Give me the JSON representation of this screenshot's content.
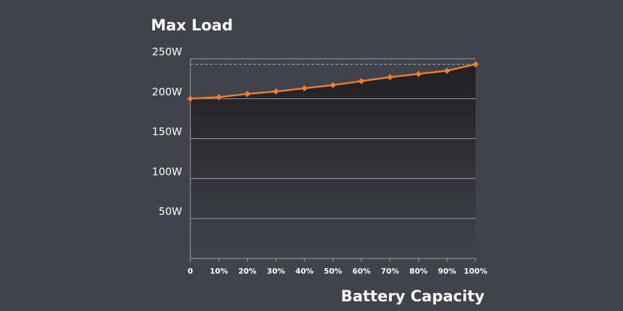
{
  "chart_data": {
    "type": "area",
    "title": "Max Load",
    "xlabel": "Battery Capacity",
    "ylabel": "",
    "x": [
      "0",
      "10%",
      "20%",
      "30%",
      "40%",
      "50%",
      "60%",
      "70%",
      "80%",
      "90%",
      "100%"
    ],
    "y_ticks": [
      "50W",
      "100W",
      "150W",
      "200W",
      "250W"
    ],
    "y_tick_values": [
      50,
      100,
      150,
      200,
      250
    ],
    "ylim": [
      0,
      250
    ],
    "series": [
      {
        "values": [
          200,
          202,
          206,
          209,
          213,
          217,
          222,
          227,
          231,
          235,
          243
        ]
      }
    ],
    "reference_line": 243,
    "grid": true,
    "colors": {
      "line": "#ef7d31",
      "fill_top": "#1f2024",
      "fill_bottom": "#41434b",
      "background": "#41434b"
    }
  }
}
